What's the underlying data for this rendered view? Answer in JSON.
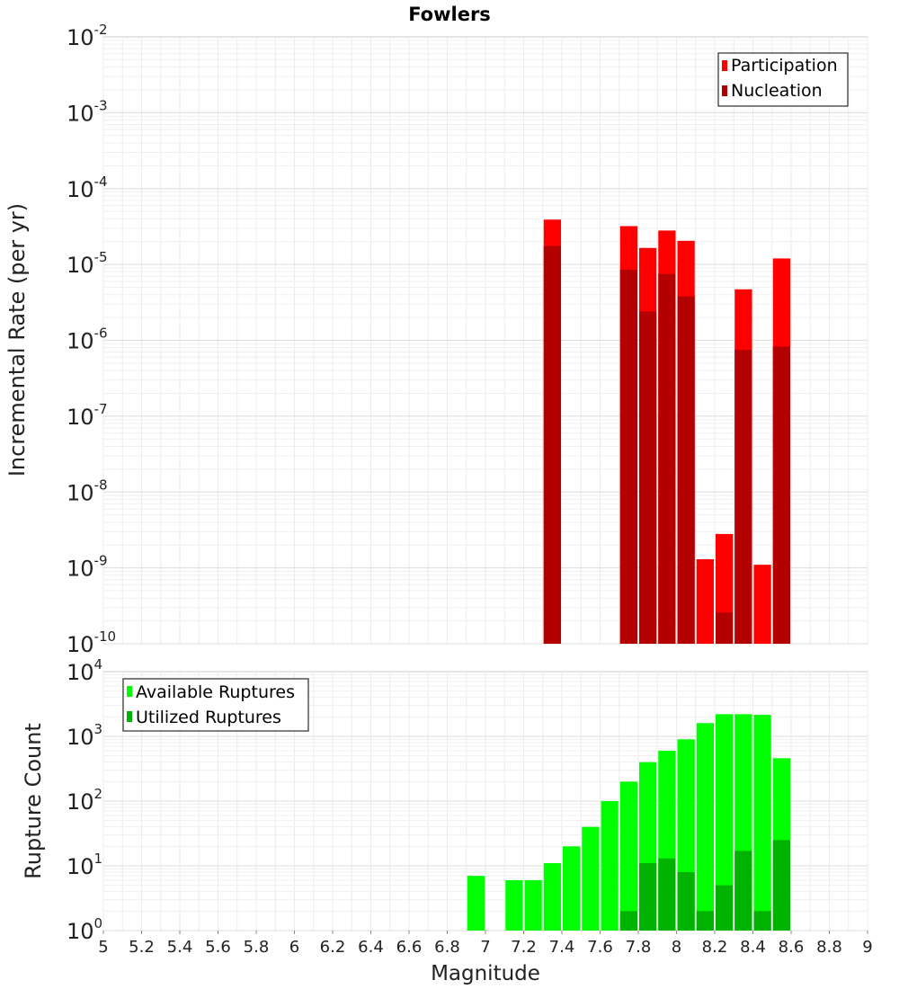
{
  "chart_data": [
    {
      "type": "bar",
      "title": "Fowlers",
      "xlabel": "",
      "ylabel": "Incremental Rate (per yr)",
      "xlim": [
        5,
        9
      ],
      "ylim_exponents": [
        -10,
        -2
      ],
      "y_scale": "log",
      "grid": true,
      "legend_position": "top-right",
      "y_tick_base": "10",
      "y_tick_exponents": [
        "-10",
        "-9",
        "-8",
        "-7",
        "-6",
        "-5",
        "-4",
        "-3",
        "-2"
      ],
      "categories": [
        7.35,
        7.75,
        7.85,
        7.95,
        8.05,
        8.15,
        8.25,
        8.35,
        8.45,
        8.55
      ],
      "series": [
        {
          "name": "Participation",
          "color": "#ff0000",
          "values": [
            3.9e-05,
            3.2e-05,
            1.65e-05,
            2.8e-05,
            2.05e-05,
            1.3e-09,
            2.8e-09,
            4.7e-06,
            1.1e-09,
            1.2e-05
          ]
        },
        {
          "name": "Nucleation",
          "color": "#b30000",
          "values": [
            1.75e-05,
            8.5e-06,
            2.4e-06,
            7.5e-06,
            3.8e-06,
            0,
            2.6e-10,
            7.5e-07,
            0,
            8.3e-07
          ]
        }
      ]
    },
    {
      "type": "bar",
      "title": "",
      "xlabel": "Magnitude",
      "ylabel": "Rupture Count",
      "xlim": [
        5,
        9
      ],
      "ylim_exponents": [
        0,
        4
      ],
      "y_scale": "log",
      "grid": true,
      "legend_position": "top-left",
      "y_tick_base": "10",
      "y_tick_exponents": [
        "0",
        "1",
        "2",
        "3",
        "4"
      ],
      "x_ticks": [
        "5",
        "5.2",
        "5.4",
        "5.6",
        "5.8",
        "6",
        "6.2",
        "6.4",
        "6.6",
        "6.8",
        "7",
        "7.2",
        "7.4",
        "7.6",
        "7.8",
        "8",
        "8.2",
        "8.4",
        "8.6",
        "8.8",
        "9"
      ],
      "categories": [
        6.95,
        7.15,
        7.25,
        7.35,
        7.45,
        7.55,
        7.65,
        7.75,
        7.85,
        7.95,
        8.05,
        8.15,
        8.25,
        8.35,
        8.45,
        8.55
      ],
      "series": [
        {
          "name": "Available Ruptures",
          "color": "#00ff00",
          "values": [
            7,
            6,
            6,
            11,
            20,
            40,
            100,
            200,
            400,
            600,
            900,
            1600,
            2200,
            2200,
            2150,
            460
          ]
        },
        {
          "name": "Utilized Ruptures",
          "color": "#00b300",
          "values": [
            0,
            0,
            0,
            1,
            0,
            0,
            0,
            2,
            11,
            13,
            8,
            2,
            5,
            17,
            2,
            25
          ]
        }
      ]
    }
  ]
}
